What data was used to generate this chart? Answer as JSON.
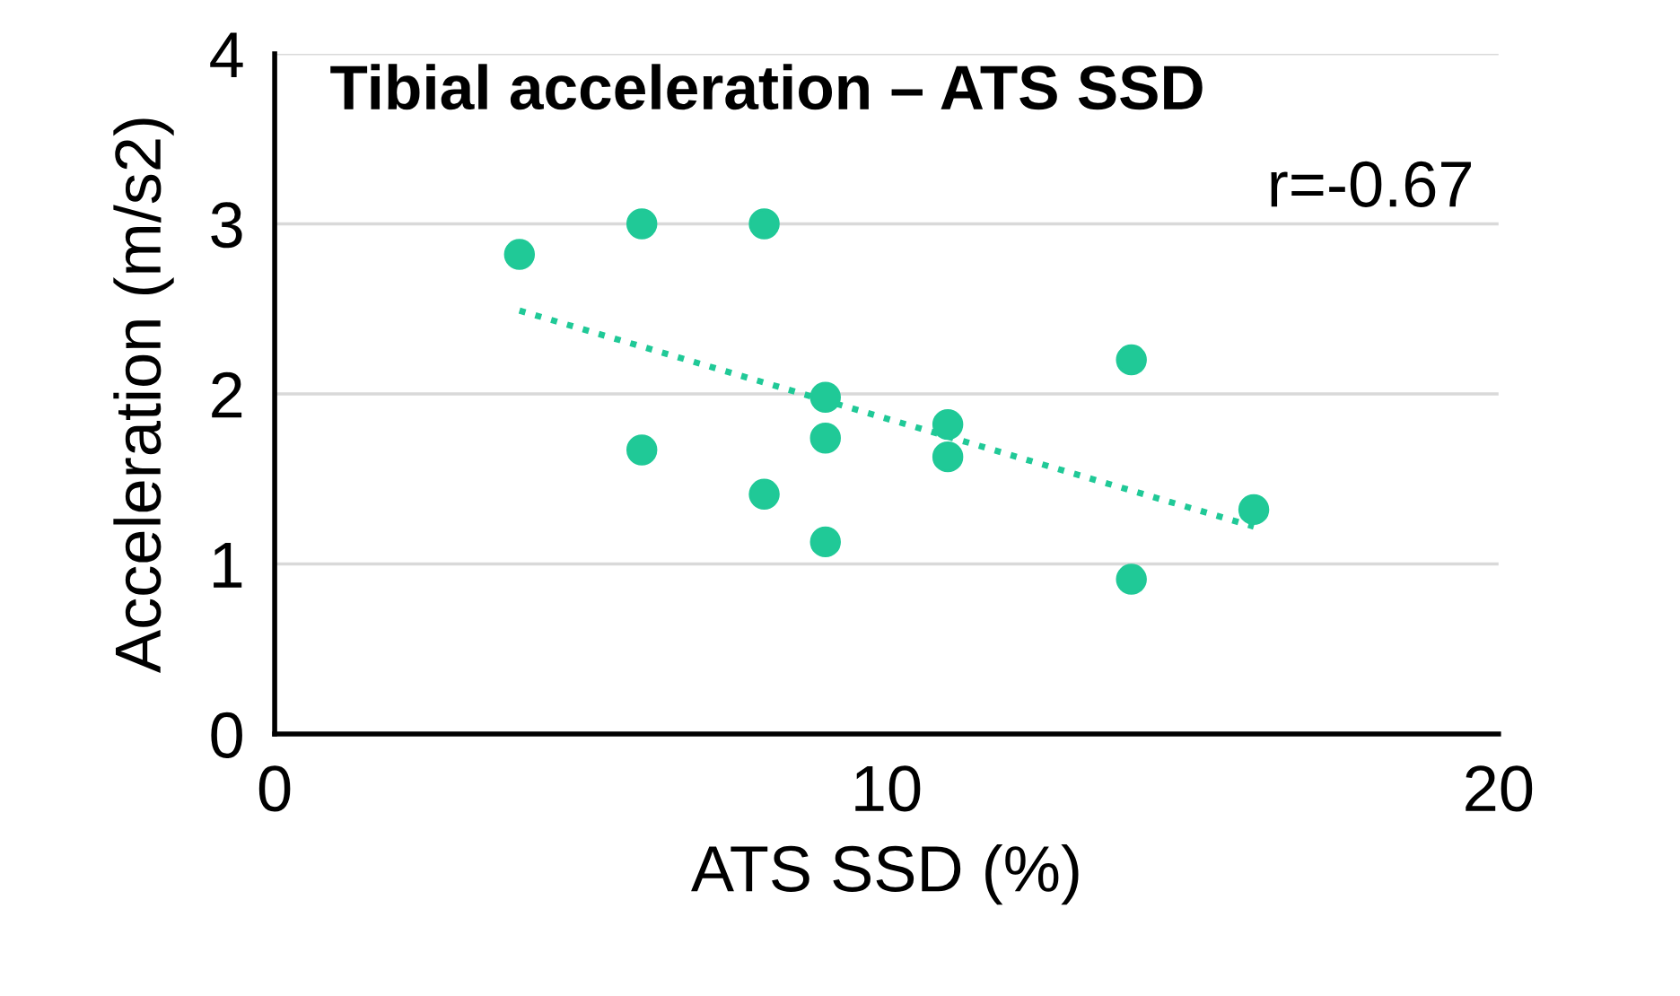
{
  "chart_data": {
    "type": "scatter",
    "title": "Tibial acceleration – ATS SSD",
    "xlabel": "ATS SSD (%)",
    "ylabel": "Acceleration (m/s2)",
    "annotations": [
      "r=-0.67"
    ],
    "xlim": [
      0,
      20
    ],
    "xticks": [
      0,
      10,
      20
    ],
    "ylim": [
      0,
      4
    ],
    "yticks": [
      0,
      1,
      2,
      3,
      4
    ],
    "grid": "y",
    "marker": "circle",
    "series": [
      {
        "color": "#20c997",
        "x": [
          4,
          6,
          8,
          6,
          8,
          9,
          9,
          9,
          11,
          11,
          14,
          14,
          16
        ],
        "values": [
          2.82,
          3.0,
          3.0,
          1.67,
          1.41,
          1.98,
          1.74,
          1.13,
          1.82,
          1.63,
          2.2,
          0.91,
          1.32
        ]
      },
      {
        "type": "line",
        "color": "#20c997",
        "line_style": "dotted",
        "marker": "none",
        "x": [
          4,
          16
        ],
        "values": [
          2.49,
          1.22
        ]
      }
    ]
  }
}
